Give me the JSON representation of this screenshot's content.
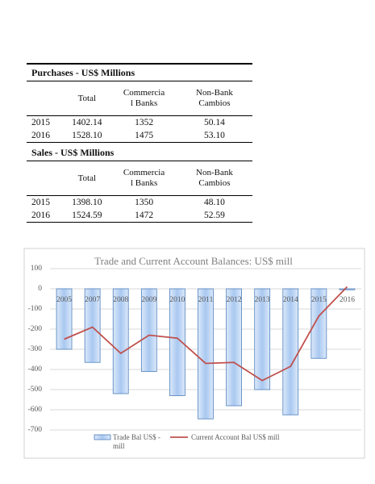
{
  "tables": [
    {
      "title": "Purchases - US$ Millions",
      "columns": [
        "Total",
        "Commercial Banks",
        "Non-Bank Cambios"
      ],
      "rows": [
        [
          "2015",
          "1402.14",
          "1352",
          "50.14"
        ],
        [
          "2016",
          "1528.10",
          "1475",
          "53.10"
        ]
      ]
    },
    {
      "title": "Sales - US$ Millions",
      "columns": [
        "Total",
        "Commercial Banks",
        "Non-Bank Cambios"
      ],
      "rows": [
        [
          "2015",
          "1398.10",
          "1350",
          "48.10"
        ],
        [
          "2016",
          "1524.59",
          "1472",
          "52.59"
        ]
      ]
    }
  ],
  "chart_data": {
    "type": "bar",
    "title": "Trade and Current Account Balances: US$ mill",
    "categories": [
      "2005",
      "2007",
      "2008",
      "2009",
      "2010",
      "2011",
      "2012",
      "2013",
      "2014",
      "2015",
      "2016"
    ],
    "series": [
      {
        "name": "Trade Bal US$ - mill",
        "type": "bar",
        "color": "#9dbfeb",
        "values": [
          -300,
          -365,
          -520,
          -410,
          -530,
          -645,
          -580,
          -500,
          -625,
          -345,
          -5
        ]
      },
      {
        "name": "Current Account Bal US$ mill",
        "type": "line",
        "color": "#c0504d",
        "values": [
          -250,
          -190,
          -320,
          -230,
          -245,
          -370,
          -365,
          -455,
          -385,
          -135,
          10
        ]
      }
    ],
    "ylim": [
      -700,
      100
    ],
    "yticks": [
      100,
      0,
      -100,
      -200,
      -300,
      -400,
      -500,
      -600,
      -700
    ],
    "grid": true
  }
}
